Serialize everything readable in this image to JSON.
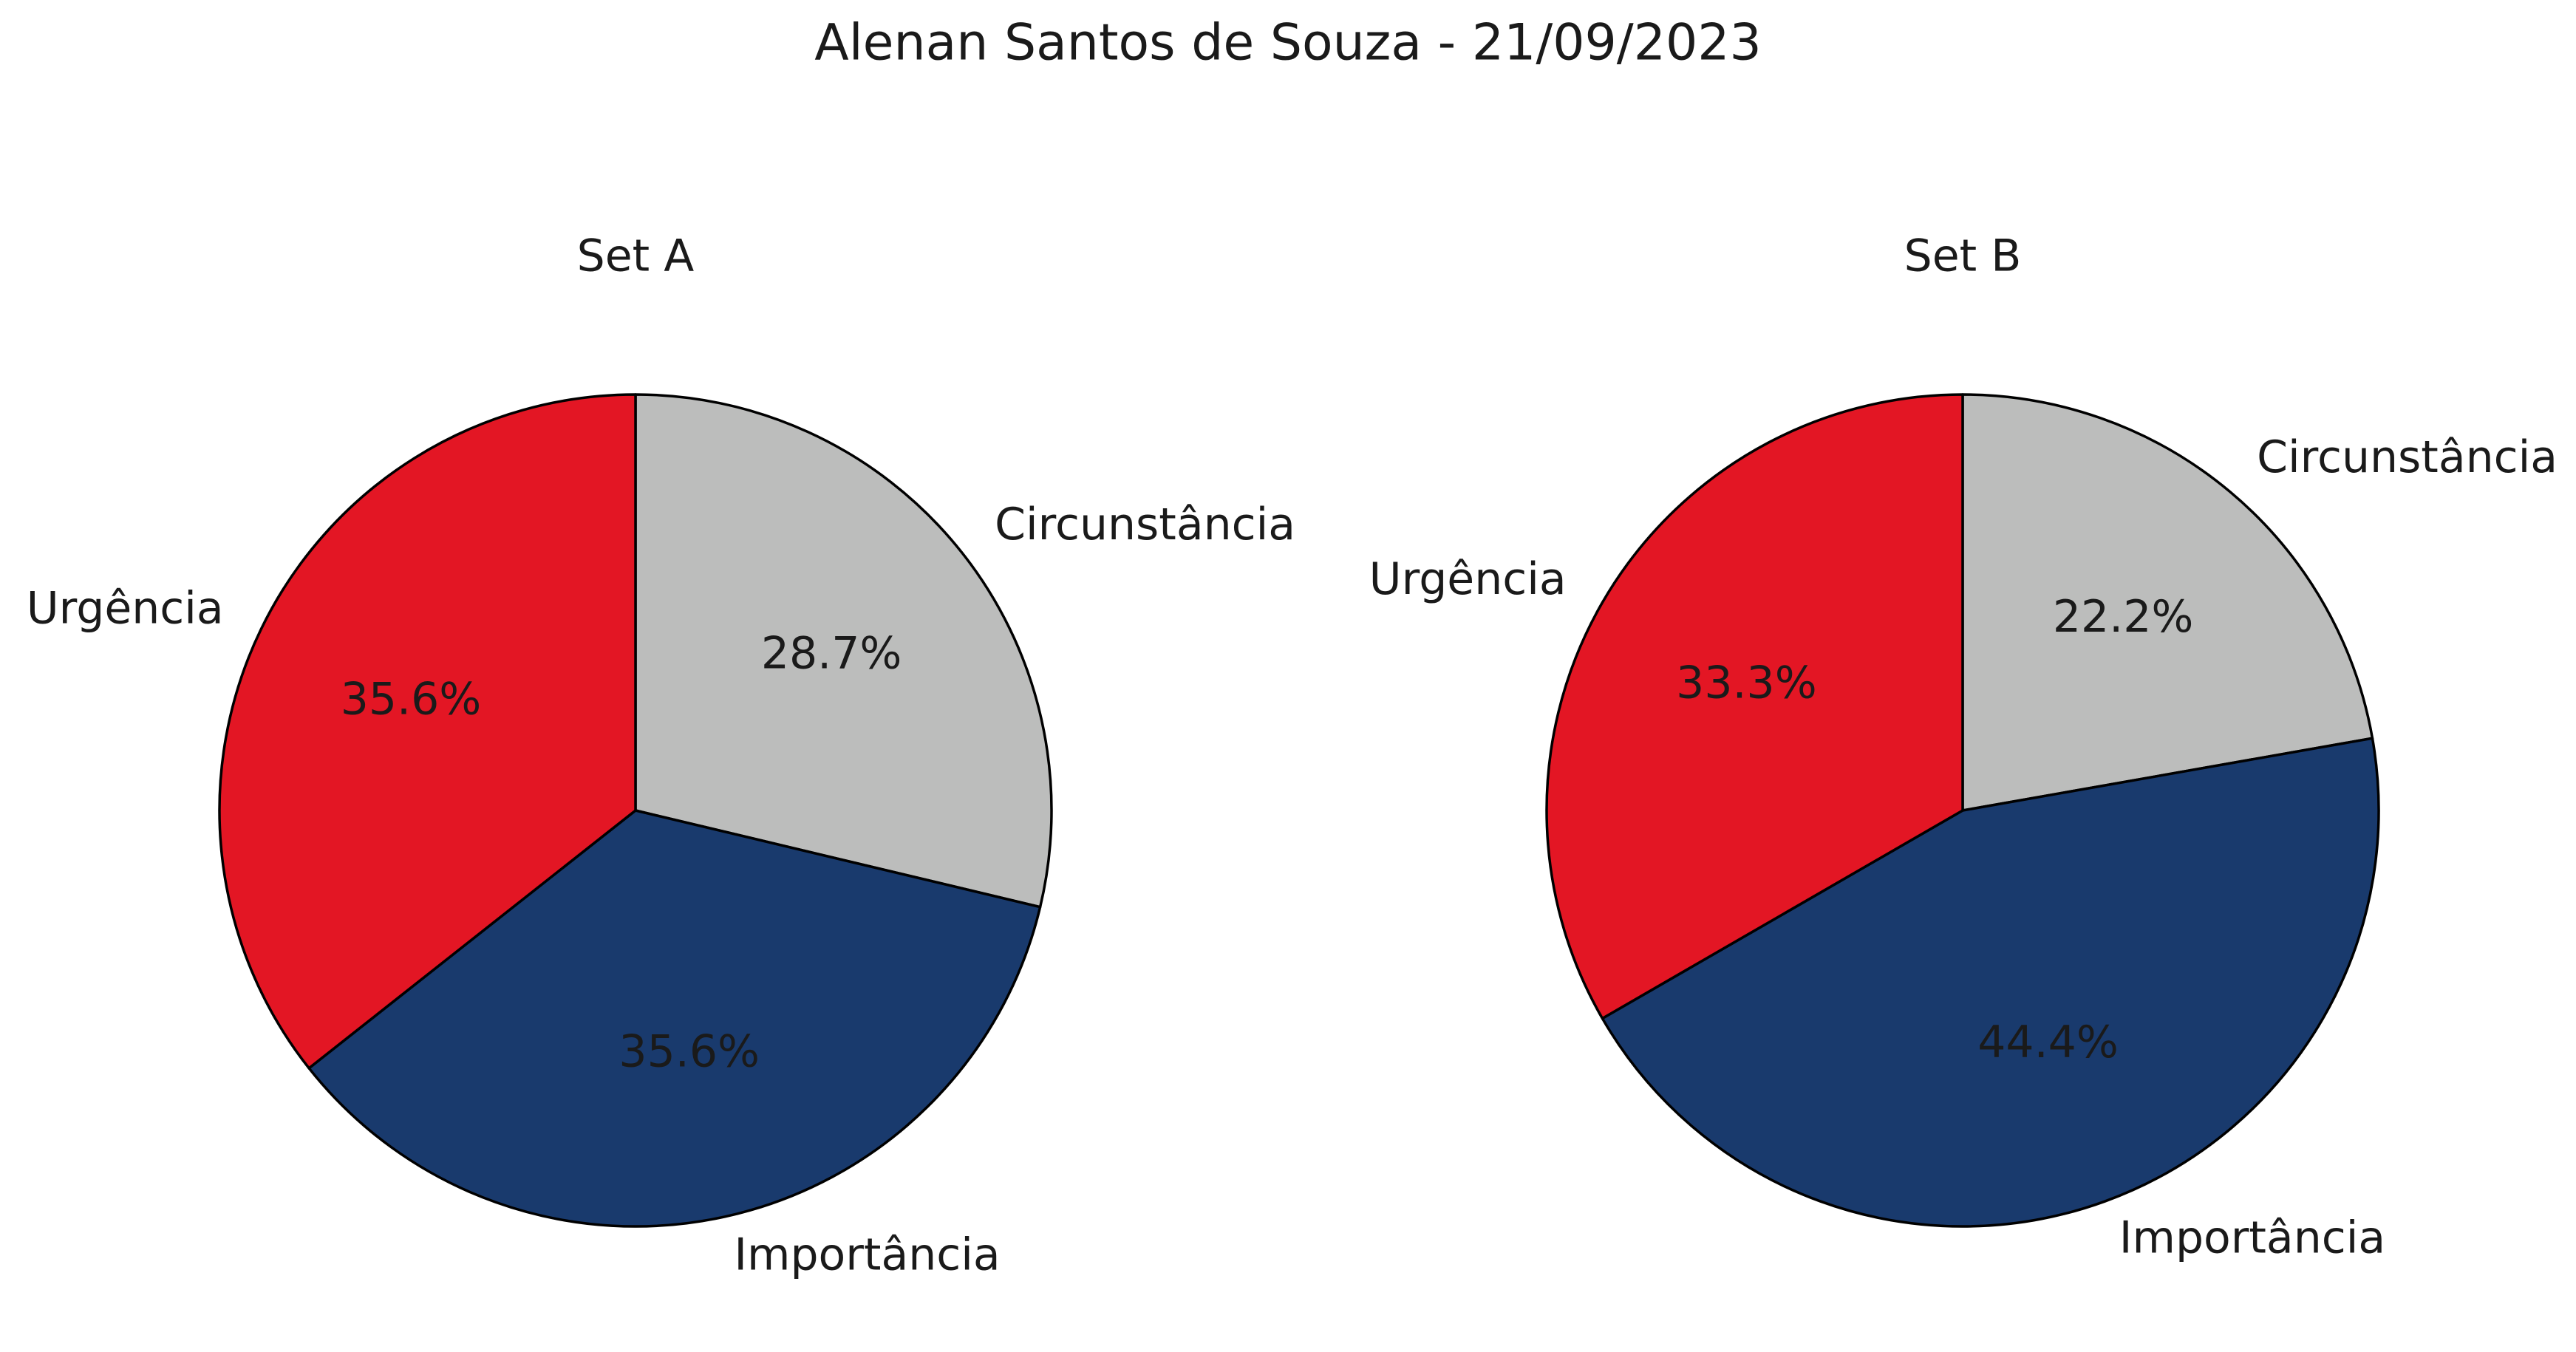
{
  "page": {
    "title": "Alenan Santos de Souza - 21/09/2023"
  },
  "chart_data": [
    {
      "type": "pie",
      "title": "Set A",
      "categories": [
        "Circunstância",
        "Importância",
        "Urgência"
      ],
      "values": [
        28.7,
        35.6,
        35.6
      ],
      "value_labels": [
        "28.7%",
        "35.6%",
        "35.6%"
      ],
      "colors": [
        "#BCBDBC",
        "#193A6D",
        "#E31624"
      ],
      "start_angle_deg": 90,
      "direction": "clockwise",
      "edge_color": "#000000"
    },
    {
      "type": "pie",
      "title": "Set B",
      "categories": [
        "Circunstância",
        "Importância",
        "Urgência"
      ],
      "values": [
        22.2,
        44.4,
        33.3
      ],
      "value_labels": [
        "22.2%",
        "44.4%",
        "33.3%"
      ],
      "colors": [
        "#BCBDBC",
        "#193A6D",
        "#E31624"
      ],
      "start_angle_deg": 90,
      "direction": "clockwise",
      "edge_color": "#000000"
    }
  ]
}
